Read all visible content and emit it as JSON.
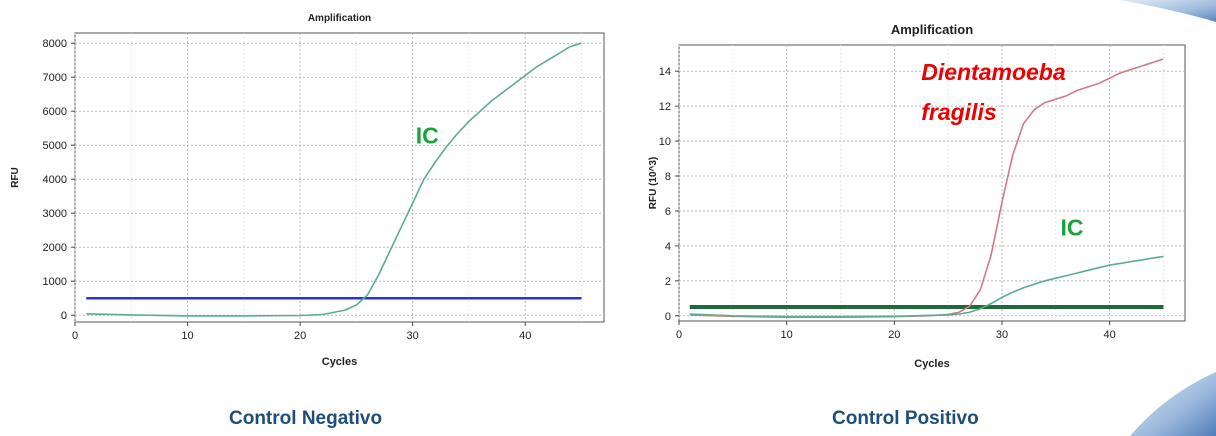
{
  "captions": {
    "left": "Control Negativo",
    "right": "Control Positivo"
  },
  "colors": {
    "ic_curve": "#5aae8a",
    "target_curve": "#d07a88",
    "threshold_negative": "#2f2fd8",
    "threshold_positive": "#1e6a3c",
    "ic_label": "#1aa33a",
    "target_label": "#ee0000",
    "caption": "#1f4e79"
  },
  "chart_data": [
    {
      "type": "line",
      "title": "Amplification",
      "xlabel": "Cycles",
      "ylabel": "RFU",
      "xlim": [
        0,
        47
      ],
      "ylim": [
        -200,
        8300
      ],
      "xticks": [
        0,
        10,
        20,
        30,
        40
      ],
      "yticks": [
        0,
        1000,
        2000,
        3000,
        4000,
        5000,
        6000,
        7000,
        8000
      ],
      "grid": true,
      "threshold": 500,
      "annotations": [
        {
          "text": "IC",
          "x": 31.3,
          "y": 5050,
          "color": "#1aa33a"
        }
      ],
      "series": [
        {
          "name": "IC",
          "color": "#5aae8a",
          "x": [
            1,
            5,
            10,
            15,
            20,
            22,
            24,
            25,
            26,
            27,
            28,
            29,
            30,
            31,
            32,
            33,
            34,
            35,
            36,
            37,
            38,
            39,
            40,
            41,
            42,
            43,
            44,
            45
          ],
          "y": [
            40,
            10,
            -20,
            -20,
            -10,
            20,
            150,
            300,
            600,
            1200,
            1900,
            2600,
            3300,
            4000,
            4500,
            4950,
            5350,
            5700,
            6000,
            6300,
            6550,
            6800,
            7050,
            7300,
            7500,
            7700,
            7900,
            8000
          ]
        }
      ]
    },
    {
      "type": "line",
      "title": "Amplification",
      "xlabel": "Cycles",
      "ylabel": "RFU (10^3)",
      "xlim": [
        0,
        47
      ],
      "ylim": [
        -0.3,
        15.5
      ],
      "xticks": [
        0,
        10,
        20,
        30,
        40
      ],
      "yticks": [
        0,
        2,
        4,
        6,
        8,
        10,
        12,
        14
      ],
      "grid": true,
      "threshold": 0.5,
      "annotations": [
        {
          "text": "Dientamoeba",
          "x": 22.5,
          "y": 13.5,
          "color": "#ee0000"
        },
        {
          "text": "fragilis",
          "x": 22.5,
          "y": 11.2,
          "color": "#ee0000"
        },
        {
          "text": "IC",
          "x": 36.5,
          "y": 4.6,
          "color": "#1aa33a"
        }
      ],
      "series": [
        {
          "name": "Dientamoeba fragilis",
          "color": "#d07a88",
          "x": [
            1,
            5,
            10,
            15,
            20,
            23,
            25,
            26,
            27,
            28,
            29,
            30,
            31,
            32,
            33,
            34,
            35,
            36,
            37,
            38,
            39,
            40,
            41,
            42,
            43,
            44,
            45
          ],
          "y": [
            0.05,
            -0.03,
            -0.08,
            -0.08,
            -0.05,
            0.0,
            0.08,
            0.2,
            0.55,
            1.5,
            3.5,
            6.5,
            9.2,
            11.0,
            11.8,
            12.2,
            12.4,
            12.6,
            12.9,
            13.1,
            13.3,
            13.6,
            13.9,
            14.1,
            14.3,
            14.5,
            14.7
          ]
        },
        {
          "name": "IC",
          "color": "#5aae8a",
          "x": [
            1,
            5,
            10,
            15,
            20,
            25,
            26,
            27,
            28,
            29,
            30,
            31,
            32,
            33,
            34,
            35,
            36,
            37,
            38,
            39,
            40,
            41,
            42,
            43,
            44,
            45
          ],
          "y": [
            0.1,
            0.0,
            -0.05,
            -0.05,
            -0.03,
            0.05,
            0.1,
            0.2,
            0.4,
            0.7,
            1.05,
            1.35,
            1.6,
            1.8,
            2.0,
            2.15,
            2.3,
            2.45,
            2.6,
            2.75,
            2.9,
            3.0,
            3.1,
            3.2,
            3.3,
            3.4
          ]
        }
      ]
    }
  ]
}
